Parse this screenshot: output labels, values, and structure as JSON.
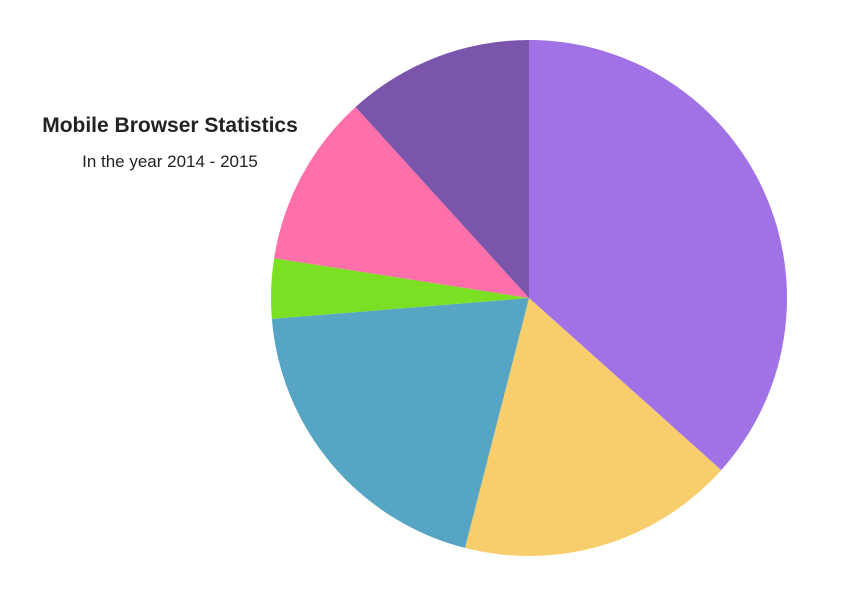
{
  "chart_data": {
    "type": "pie",
    "title": "Mobile Browser Statistics",
    "subtitle": "In the year 2014 - 2015",
    "legend": "none",
    "slices": [
      {
        "value": 39.0,
        "color": "#a171e6"
      },
      {
        "value": 18.5,
        "color": "#f8cd6b"
      },
      {
        "value": 21.0,
        "color": "#56a5c4"
      },
      {
        "value": 4.0,
        "color": "#7be023"
      },
      {
        "value": 11.5,
        "color": "#ff6fa9"
      },
      {
        "value": 12.5,
        "color": "#7b55ab"
      }
    ]
  }
}
